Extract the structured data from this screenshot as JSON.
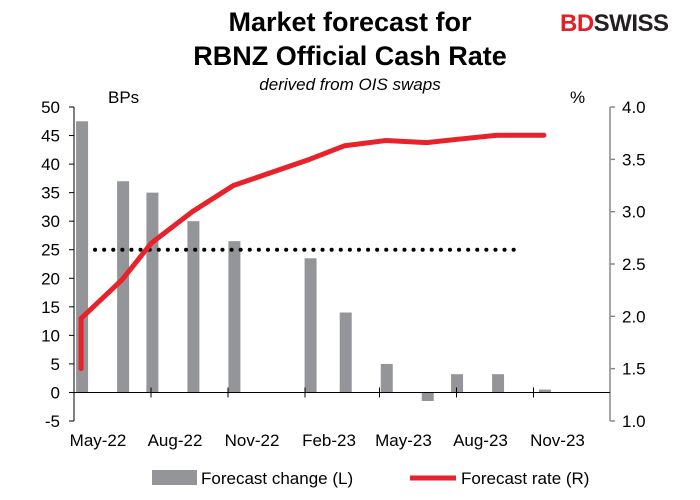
{
  "logo": {
    "part1": "BD",
    "part2": "SWISS",
    "color1": "#e31e24",
    "color2": "#231f20"
  },
  "chart_data": {
    "type": "bar+line",
    "title_line1": "Market forecast for",
    "title_line2": "RBNZ Official Cash Rate",
    "subtitle": "derived from OIS swaps",
    "left_axis_label": "BPs",
    "right_axis_label": "%",
    "left_ylim": [
      -5,
      50
    ],
    "left_ticks": [
      "50",
      "45",
      "40",
      "35",
      "30",
      "25",
      "20",
      "15",
      "10",
      "5",
      "0",
      "-5"
    ],
    "right_ylim": [
      1.0,
      4.0
    ],
    "right_ticks": [
      "4.0",
      "3.5",
      "3.0",
      "2.5",
      "2.0",
      "1.5",
      "1.0"
    ],
    "x_ticks": [
      "May-22",
      "Aug-22",
      "Nov-22",
      "Feb-23",
      "May-23",
      "Aug-23",
      "Nov-23"
    ],
    "reference_line": {
      "axis": "left",
      "value": 25,
      "style": "dotted"
    },
    "series": [
      {
        "name": "Forecast change (L)",
        "type": "bar",
        "axis": "left",
        "color": "#939598",
        "x": [
          "2022-05-25",
          "2022-07-13",
          "2022-08-17",
          "2022-10-05",
          "2022-11-23",
          "2023-02-22",
          "2023-04-05",
          "2023-05-24",
          "2023-07-12",
          "2023-08-16",
          "2023-10-04",
          "2023-11-29"
        ],
        "values": [
          47.5,
          37,
          35,
          30,
          26.5,
          23.5,
          14,
          5,
          -1.5,
          3.2,
          3.2,
          0.5
        ]
      },
      {
        "name": "Forecast rate (R)",
        "type": "line",
        "axis": "right",
        "color": "#e8222a",
        "x": [
          "2022-05-25",
          "2022-05-25",
          "2022-07-13",
          "2022-08-17",
          "2022-10-05",
          "2022-11-23",
          "2023-02-22",
          "2023-04-05",
          "2023-05-24",
          "2023-07-12",
          "2023-08-16",
          "2023-10-04",
          "2023-11-29"
        ],
        "values": [
          1.5,
          1.98,
          2.35,
          2.7,
          3.0,
          3.25,
          3.5,
          3.63,
          3.68,
          3.66,
          3.69,
          3.73,
          3.73
        ]
      }
    ]
  }
}
